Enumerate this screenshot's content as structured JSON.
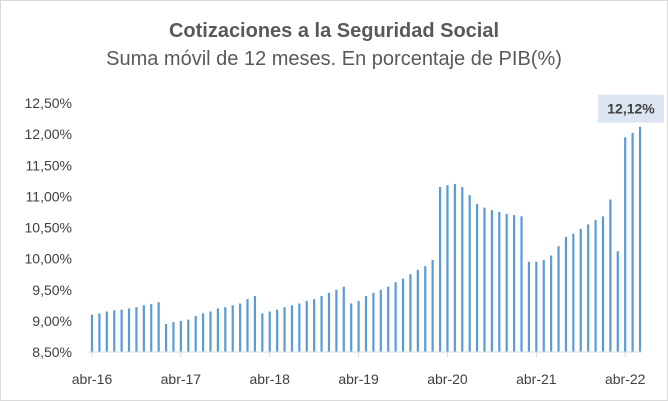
{
  "chart_data": {
    "type": "bar",
    "title": "Cotizaciones a la Seguridad Social",
    "subtitle": "Suma móvil de 12 meses. En porcentaje de PIB(%)",
    "xlabel": "",
    "ylabel": "",
    "ylim": [
      8.5,
      12.5
    ],
    "yticks": [
      "8,50%",
      "9,00%",
      "9,50%",
      "10,00%",
      "10,50%",
      "11,00%",
      "11,50%",
      "12,00%",
      "12,50%"
    ],
    "xticks": [
      "abr-16",
      "abr-17",
      "abr-18",
      "abr-19",
      "abr-20",
      "abr-21",
      "abr-22"
    ],
    "grid": false,
    "bar_color": "#5b9bd5",
    "callout": {
      "label": "12,12%",
      "value": 12.12
    },
    "values": [
      9.1,
      9.12,
      9.15,
      9.17,
      9.18,
      9.2,
      9.22,
      9.25,
      9.27,
      9.3,
      8.95,
      8.98,
      9.0,
      9.02,
      9.08,
      9.12,
      9.15,
      9.2,
      9.22,
      9.25,
      9.28,
      9.35,
      9.4,
      9.12,
      9.15,
      9.18,
      9.22,
      9.25,
      9.28,
      9.32,
      9.35,
      9.4,
      9.45,
      9.5,
      9.55,
      9.28,
      9.32,
      9.4,
      9.45,
      9.5,
      9.55,
      9.62,
      9.68,
      9.75,
      9.82,
      9.88,
      9.98,
      11.15,
      11.18,
      11.2,
      11.15,
      11.02,
      10.88,
      10.82,
      10.78,
      10.75,
      10.72,
      10.7,
      10.68,
      9.95,
      9.95,
      9.98,
      10.05,
      10.2,
      10.35,
      10.4,
      10.48,
      10.55,
      10.62,
      10.68,
      10.95,
      10.12,
      11.95,
      12.02,
      12.12
    ]
  }
}
